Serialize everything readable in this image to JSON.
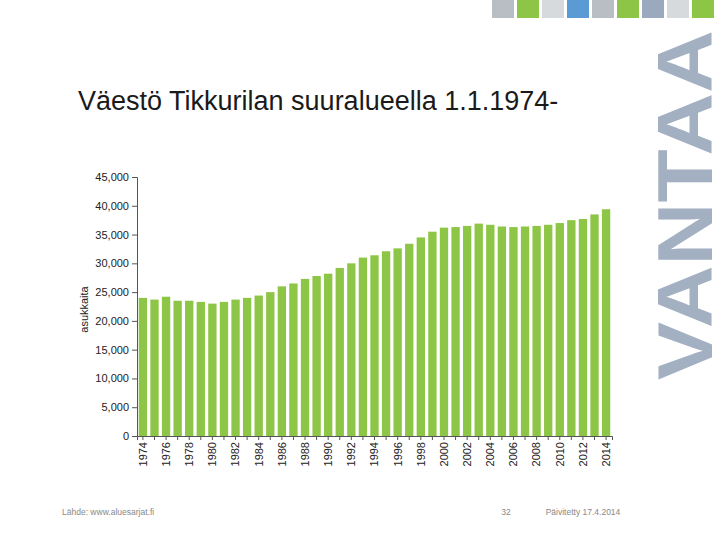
{
  "chart_data": {
    "type": "bar",
    "title": "Väestö Tikkurilan suuralueella 1.1.1974-",
    "y_label": "asukkaita",
    "categories": [
      "1974",
      null,
      "1976",
      null,
      "1978",
      null,
      "1980",
      null,
      "1982",
      null,
      "1984",
      null,
      "1986",
      null,
      "1988",
      null,
      "1990",
      null,
      "1992",
      null,
      "1994",
      null,
      "1996",
      null,
      "1998",
      null,
      "2000",
      null,
      "2002",
      null,
      "2004",
      null,
      "2006",
      null,
      "2008",
      null,
      "2010",
      null,
      "2012",
      null,
      "2014"
    ],
    "values": [
      24000,
      23700,
      24200,
      23500,
      23500,
      23300,
      23000,
      23300,
      23700,
      24000,
      24400,
      25000,
      26000,
      26500,
      27300,
      27800,
      28200,
      29200,
      30000,
      31000,
      31400,
      32100,
      32600,
      33400,
      34500,
      35500,
      36200,
      36300,
      36500,
      36900,
      36700,
      36400,
      36300,
      36400,
      36500,
      36700,
      37000,
      37500,
      37700,
      38500,
      39400
    ],
    "color": "#8dc646",
    "ylim": [
      0,
      45000
    ],
    "yticks": [
      0,
      {
        "value": 5000,
        "label": "5,000"
      },
      {
        "value": 10000,
        "label": "10,000"
      },
      {
        "value": 15000,
        "label": "15,000"
      },
      {
        "value": 20000,
        "label": "20,000"
      },
      {
        "value": 25000,
        "label": "25,000"
      },
      {
        "value": 30000,
        "label": "30,000"
      },
      {
        "value": 35000,
        "label": "35,000"
      },
      {
        "value": 40000,
        "label": "40,000"
      },
      {
        "value": 45000,
        "label": "45,000"
      }
    ],
    "grid": false,
    "annotations": [
      "Lähde: www.aluesarjat.fi",
      "32",
      "Päivitetty 17.4.2014",
      "VANTAA"
    ]
  }
}
